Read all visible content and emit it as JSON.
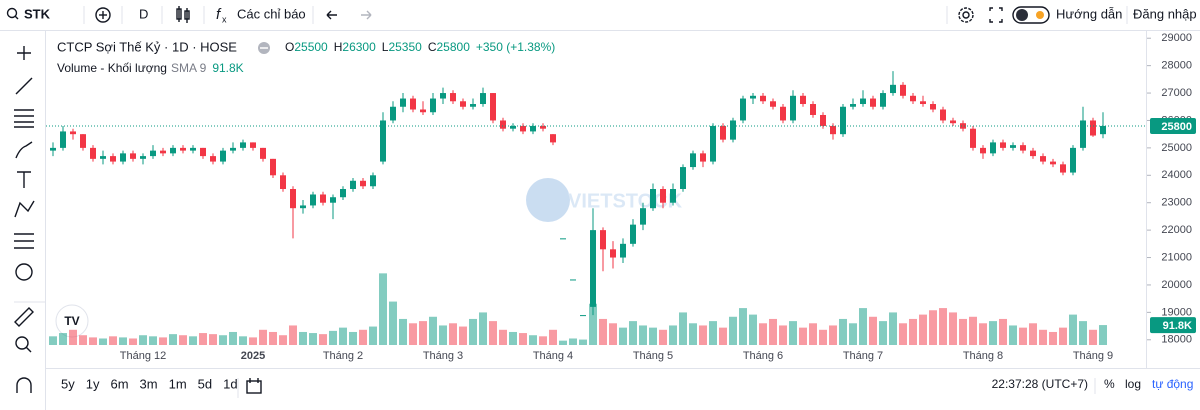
{
  "toolbar": {
    "symbol": "STK",
    "interval": "D",
    "indicators": "Các chỉ báo",
    "guide": "Hướng dẫn",
    "login": "Đăng nhập"
  },
  "bottom_bar": {
    "ranges": [
      "5y",
      "1y",
      "6m",
      "3m",
      "1m",
      "5d",
      "1d"
    ],
    "clock": "22:37:28 (UTC+7)",
    "percent": "%",
    "log": "log",
    "auto": "tự động"
  },
  "watermark": "VIETSTOCK",
  "chart_data": {
    "type": "candlestick",
    "title": "CTCP Sợi Thế Kỷ · 1D · HOSE",
    "ohlc": [
      {
        "label": "O",
        "value": 25500
      },
      {
        "label": "H",
        "value": 26300
      },
      {
        "label": "L",
        "value": 25350
      },
      {
        "label": "C",
        "value": 25800
      }
    ],
    "change": "+350 (+1.38%)",
    "up_color": "#089981",
    "down_color": "#f23645",
    "ylim": [
      17700,
      29300
    ],
    "yticks": [
      29000,
      28000,
      27000,
      26000,
      25000,
      24000,
      23000,
      22000,
      21000,
      20000,
      19000,
      18000
    ],
    "last_price": 25800,
    "categories": [
      null,
      null,
      null,
      null,
      null,
      null,
      null,
      null,
      null,
      "Tháng 12",
      null,
      null,
      null,
      null,
      null,
      null,
      null,
      null,
      null,
      null,
      "2025",
      null,
      null,
      null,
      null,
      null,
      null,
      null,
      null,
      "Tháng 2",
      null,
      null,
      null,
      null,
      null,
      null,
      null,
      null,
      null,
      "Tháng 3",
      null,
      null,
      null,
      null,
      null,
      null,
      null,
      null,
      null,
      null,
      "Tháng 4",
      null,
      null,
      null,
      null,
      null,
      null,
      null,
      null,
      null,
      "Tháng 5",
      null,
      null,
      null,
      null,
      null,
      null,
      null,
      null,
      null,
      null,
      "Tháng 6",
      null,
      null,
      null,
      null,
      null,
      null,
      null,
      null,
      null,
      "Tháng 7",
      null,
      null,
      null,
      null,
      null,
      null,
      null,
      null,
      null,
      null,
      null,
      "Tháng 8",
      null,
      null,
      null,
      null,
      null,
      null,
      null,
      null,
      null,
      null,
      "Tháng 9",
      null
    ],
    "candles": [
      [
        24900,
        25200,
        24700,
        25000
      ],
      [
        25000,
        25800,
        24900,
        25600
      ],
      [
        25600,
        25700,
        25300,
        25500
      ],
      [
        25500,
        25500,
        24900,
        25000
      ],
      [
        25000,
        25100,
        24500,
        24600
      ],
      [
        24600,
        24900,
        24400,
        24700
      ],
      [
        24700,
        24800,
        24400,
        24500
      ],
      [
        24500,
        24900,
        24400,
        24800
      ],
      [
        24800,
        24900,
        24500,
        24600
      ],
      [
        24600,
        24800,
        24400,
        24700
      ],
      [
        24700,
        25100,
        24600,
        24900
      ],
      [
        24900,
        25000,
        24700,
        24800
      ],
      [
        24800,
        25100,
        24700,
        25000
      ],
      [
        25000,
        25100,
        24800,
        24900
      ],
      [
        24900,
        25100,
        24800,
        25000
      ],
      [
        25000,
        25000,
        24600,
        24700
      ],
      [
        24700,
        24800,
        24400,
        24500
      ],
      [
        24500,
        25000,
        24400,
        24900
      ],
      [
        24900,
        25200,
        24800,
        25000
      ],
      [
        25000,
        25300,
        24900,
        25200
      ],
      [
        25200,
        25200,
        24900,
        25000
      ],
      [
        25000,
        25000,
        24500,
        24600
      ],
      [
        24600,
        24600,
        23900,
        24000
      ],
      [
        24000,
        24100,
        23400,
        23500
      ],
      [
        23500,
        23600,
        21700,
        22800
      ],
      [
        22800,
        23100,
        22600,
        22900
      ],
      [
        22900,
        23400,
        22800,
        23300
      ],
      [
        23300,
        23400,
        22900,
        23000
      ],
      [
        23000,
        23300,
        22400,
        23200
      ],
      [
        23200,
        23600,
        23100,
        23500
      ],
      [
        23500,
        23900,
        23400,
        23800
      ],
      [
        23800,
        23900,
        23500,
        23600
      ],
      [
        23600,
        24100,
        23500,
        24000
      ],
      [
        24500,
        26300,
        24400,
        26000
      ],
      [
        26000,
        26700,
        25900,
        26500
      ],
      [
        26500,
        27000,
        26300,
        26800
      ],
      [
        26800,
        26900,
        26300,
        26400
      ],
      [
        26400,
        26700,
        26200,
        26300
      ],
      [
        26300,
        27000,
        26200,
        26800
      ],
      [
        26800,
        27200,
        26600,
        27000
      ],
      [
        27000,
        27100,
        26600,
        26700
      ],
      [
        26700,
        26800,
        26400,
        26500
      ],
      [
        26500,
        26800,
        26400,
        26600
      ],
      [
        26600,
        27200,
        26500,
        27000
      ],
      [
        27000,
        27000,
        25900,
        26000
      ],
      [
        26000,
        26100,
        25600,
        25700
      ],
      [
        25700,
        25900,
        25600,
        25800
      ],
      [
        25800,
        25900,
        25500,
        25600
      ],
      [
        25600,
        25900,
        25500,
        25800
      ],
      [
        25800,
        25900,
        25600,
        25700
      ],
      [
        25500,
        25500,
        25100,
        25200
      ],
      [
        21700,
        21700,
        21700,
        21700
      ],
      [
        20200,
        20200,
        20200,
        20200
      ],
      [
        18900,
        18900,
        18900,
        18900
      ],
      [
        19200,
        22800,
        18900,
        22000
      ],
      [
        22000,
        22100,
        20500,
        21300
      ],
      [
        21300,
        21600,
        20600,
        21000
      ],
      [
        21000,
        21700,
        20800,
        21500
      ],
      [
        21500,
        22400,
        21400,
        22200
      ],
      [
        22200,
        23000,
        22000,
        22800
      ],
      [
        22800,
        23700,
        22700,
        23500
      ],
      [
        23500,
        23600,
        22800,
        23000
      ],
      [
        23000,
        23700,
        22900,
        23500
      ],
      [
        23500,
        24400,
        23400,
        24300
      ],
      [
        24300,
        24900,
        24200,
        24800
      ],
      [
        24800,
        24900,
        24300,
        24500
      ],
      [
        24500,
        25900,
        24400,
        25800
      ],
      [
        25800,
        25900,
        25200,
        25300
      ],
      [
        25300,
        26100,
        25200,
        26000
      ],
      [
        26000,
        26900,
        25900,
        26800
      ],
      [
        26800,
        27000,
        26600,
        26900
      ],
      [
        26900,
        27000,
        26600,
        26700
      ],
      [
        26700,
        26800,
        26400,
        26500
      ],
      [
        26500,
        26600,
        25900,
        26000
      ],
      [
        26000,
        27100,
        25900,
        26900
      ],
      [
        26900,
        27000,
        26500,
        26600
      ],
      [
        26600,
        26700,
        26100,
        26200
      ],
      [
        26200,
        26300,
        25700,
        25800
      ],
      [
        25800,
        25900,
        25300,
        25500
      ],
      [
        25500,
        26600,
        25400,
        26500
      ],
      [
        26500,
        26800,
        26400,
        26600
      ],
      [
        26600,
        27100,
        26500,
        26800
      ],
      [
        26800,
        26900,
        26400,
        26500
      ],
      [
        26500,
        27100,
        26400,
        27000
      ],
      [
        27000,
        27800,
        26900,
        27300
      ],
      [
        27300,
        27400,
        26800,
        26900
      ],
      [
        26900,
        27000,
        26600,
        26700
      ],
      [
        26700,
        26900,
        26500,
        26600
      ],
      [
        26600,
        26700,
        26300,
        26400
      ],
      [
        26400,
        26500,
        25900,
        26000
      ],
      [
        26000,
        26100,
        25800,
        25900
      ],
      [
        25900,
        26000,
        25600,
        25700
      ],
      [
        25700,
        25800,
        24900,
        25000
      ],
      [
        25000,
        25100,
        24600,
        24800
      ],
      [
        24800,
        25300,
        24700,
        25200
      ],
      [
        25200,
        25300,
        24900,
        25000
      ],
      [
        25000,
        25200,
        24900,
        25100
      ],
      [
        25100,
        25200,
        24800,
        24900
      ],
      [
        24900,
        25000,
        24600,
        24700
      ],
      [
        24700,
        24800,
        24400,
        24500
      ],
      [
        24500,
        24600,
        24300,
        24400
      ],
      [
        24400,
        24500,
        24000,
        24100
      ],
      [
        24100,
        25100,
        24000,
        25000
      ],
      [
        25000,
        26500,
        24900,
        26000
      ],
      [
        26000,
        26100,
        25400,
        25450
      ],
      [
        25500,
        26300,
        25350,
        25800
      ]
    ],
    "volume": {
      "name": "Volume - Khối lượng",
      "indicator": "SMA 9",
      "vlim": [
        0,
        350000
      ],
      "values": [
        40000,
        55000,
        70000,
        45000,
        35000,
        30000,
        40000,
        35000,
        30000,
        45000,
        40000,
        35000,
        50000,
        45000,
        40000,
        55000,
        50000,
        45000,
        60000,
        40000,
        35000,
        70000,
        60000,
        45000,
        90000,
        60000,
        55000,
        50000,
        65000,
        80000,
        60000,
        70000,
        85000,
        330000,
        200000,
        120000,
        100000,
        110000,
        130000,
        90000,
        100000,
        85000,
        120000,
        150000,
        110000,
        70000,
        60000,
        55000,
        45000,
        40000,
        70000,
        20000,
        30000,
        25000,
        190000,
        120000,
        100000,
        80000,
        110000,
        90000,
        80000,
        70000,
        90000,
        150000,
        100000,
        90000,
        110000,
        80000,
        130000,
        170000,
        140000,
        100000,
        120000,
        90000,
        110000,
        80000,
        100000,
        70000,
        90000,
        120000,
        100000,
        170000,
        130000,
        110000,
        150000,
        100000,
        120000,
        140000,
        160000,
        170000,
        150000,
        120000,
        130000,
        100000,
        110000,
        120000,
        90000,
        80000,
        100000,
        70000,
        60000,
        80000,
        140000,
        110000,
        70000,
        91800
      ],
      "last_label": "91.8K"
    }
  }
}
